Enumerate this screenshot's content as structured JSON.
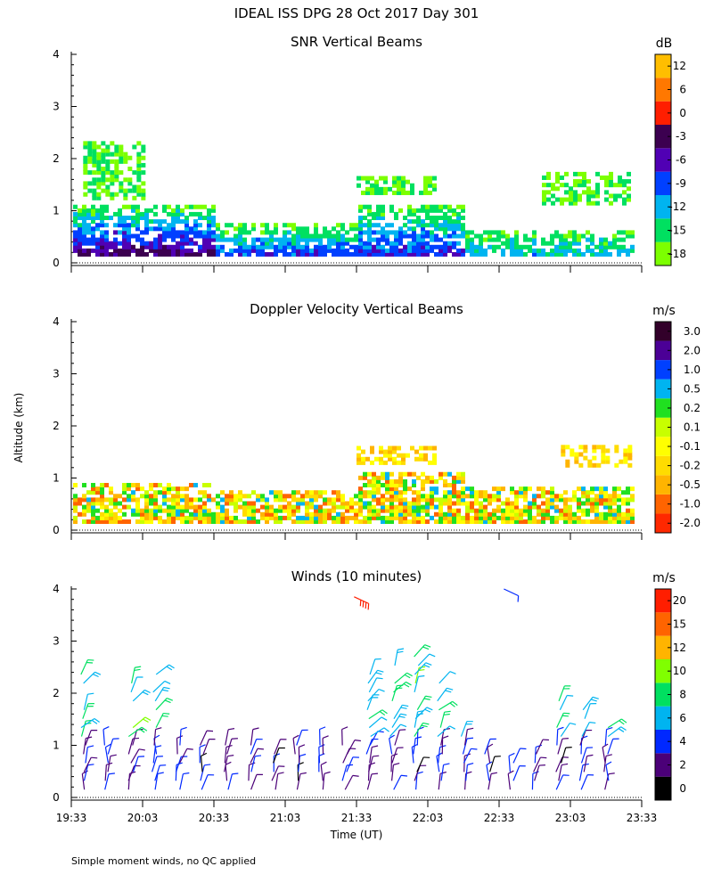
{
  "title": "IDEAL ISS DPG  28 Oct 2017 Day 301",
  "shared_ylabel": "Altitude (km)",
  "xlabel": "Time (UT)",
  "x_ticks": [
    "19:33",
    "20:03",
    "20:33",
    "21:03",
    "21:33",
    "22:03",
    "22:33",
    "23:03",
    "23:33"
  ],
  "y_ticks": [
    "0",
    "1",
    "2",
    "3",
    "4"
  ],
  "footnote": "Simple moment winds, no QC applied",
  "colors": {
    "snr": [
      "#7cff00",
      "#00e060",
      "#00b4f0",
      "#0040ff",
      "#5000b4",
      "#3c0050",
      "#ff1e00",
      "#ff7800",
      "#ffbe00"
    ],
    "velocity": [
      "#ff2800",
      "#ff6400",
      "#ffb400",
      "#ffdc00",
      "#ffff00",
      "#c8ff00",
      "#20e020",
      "#00b4f0",
      "#0040ff",
      "#4b0096",
      "#32002a"
    ],
    "winds": [
      "#000000",
      "#4b0078",
      "#0028ff",
      "#00b4f0",
      "#00e060",
      "#80ff00",
      "#ffb400",
      "#ff6400",
      "#ff1e00"
    ]
  },
  "chart_data": [
    {
      "type": "heatmap",
      "title": "SNR Vertical Beams",
      "unit": "dB",
      "xlabel": "Time (UT)",
      "ylabel": "Altitude (km)",
      "xlim": [
        "19:33",
        "23:33"
      ],
      "ylim": [
        0,
        4
      ],
      "colorbar_ticks": [
        "-18",
        "-15",
        "-12",
        "-9",
        "-6",
        "-3",
        "0",
        "6",
        "12"
      ],
      "value_range_db": [
        -18,
        15
      ],
      "data_top_km_by_period": [
        {
          "start": "19:33",
          "end": "20:33",
          "top_km": 1.1,
          "max_db": 3
        },
        {
          "start": "20:33",
          "end": "21:33",
          "top_km": 0.7,
          "max_db": -3
        },
        {
          "start": "21:33",
          "end": "22:18",
          "top_km": 1.1,
          "max_db": -3
        },
        {
          "start": "22:18",
          "end": "23:30",
          "top_km": 0.6,
          "max_db": -9
        }
      ],
      "upper_patches_km": [
        {
          "start": "19:38",
          "end": "20:03",
          "alt": [
            1.2,
            2.3
          ]
        },
        {
          "start": "21:33",
          "end": "22:05",
          "alt": [
            1.3,
            1.6
          ]
        },
        {
          "start": "22:51",
          "end": "23:28",
          "alt": [
            1.1,
            1.7
          ]
        }
      ],
      "grid": false
    },
    {
      "type": "heatmap",
      "title": "Doppler Velocity Vertical Beams",
      "unit": "m/s",
      "xlabel": "Time (UT)",
      "ylabel": "Altitude (km)",
      "xlim": [
        "19:33",
        "23:33"
      ],
      "ylim": [
        0,
        4
      ],
      "colorbar_ticks": [
        "-2.0",
        "-1.0",
        "-0.5",
        "-0.2",
        "-0.1",
        "0.1",
        "0.2",
        "0.5",
        "1.0",
        "2.0",
        "3.0"
      ],
      "data_top_km_by_period": [
        {
          "start": "19:33",
          "end": "20:33",
          "top_km": 0.85
        },
        {
          "start": "20:33",
          "end": "21:33",
          "top_km": 0.7
        },
        {
          "start": "21:33",
          "end": "22:18",
          "top_km": 1.1
        },
        {
          "start": "22:18",
          "end": "23:30",
          "top_km": 0.8
        }
      ],
      "upper_patches_km": [
        {
          "start": "21:33",
          "end": "22:05",
          "alt": [
            1.25,
            1.6
          ]
        },
        {
          "start": "22:59",
          "end": "23:28",
          "alt": [
            1.2,
            1.6
          ]
        }
      ],
      "grid": false
    },
    {
      "type": "wind_barbs",
      "title": "Winds (10 minutes)",
      "unit": "m/s",
      "xlabel": "Time (UT)",
      "ylabel": "Altitude (km)",
      "xlim": [
        "19:33",
        "23:33"
      ],
      "ylim": [
        0,
        4
      ],
      "colorbar_ticks": [
        "0",
        "2",
        "4",
        "6",
        "8",
        "10",
        "12",
        "15",
        "20"
      ],
      "profile_times": [
        "19:38",
        "19:48",
        "19:58",
        "20:08",
        "20:18",
        "20:28",
        "20:38",
        "20:48",
        "20:58",
        "21:08",
        "21:18",
        "21:28",
        "21:38",
        "21:48",
        "21:58",
        "22:08",
        "22:18",
        "22:28",
        "22:38",
        "22:48",
        "22:58",
        "23:08",
        "23:18"
      ],
      "profile_top_km": [
        2.5,
        1.1,
        2.3,
        2.5,
        1.1,
        1.1,
        1.0,
        1.0,
        0.9,
        1.0,
        1.1,
        1.0,
        2.5,
        2.6,
        2.7,
        2.5,
        1.2,
        0.9,
        0.8,
        0.9,
        2.0,
        1.9,
        1.8
      ],
      "isolated_barbs": [
        {
          "time": "21:32",
          "alt_km": 3.85,
          "speed_ms": 20
        },
        {
          "time": "22:35",
          "alt_km": 4.0,
          "speed_ms": 6
        }
      ],
      "grid": false
    }
  ]
}
